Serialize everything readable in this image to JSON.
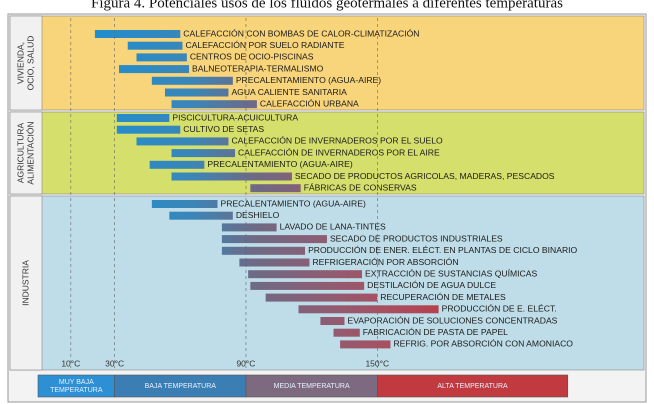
{
  "chart_data": {
    "type": "range_bar",
    "title": "Figura 4. Potenciales usos de los fluidos geotermales a diferentes temperaturas",
    "xlim": [
      -5,
      270
    ],
    "xticks": [
      {
        "value": 10,
        "label": "10°C"
      },
      {
        "value": 30,
        "label": "30°C"
      },
      {
        "value": 90,
        "label": "90°C"
      },
      {
        "value": 150,
        "label": "150°C"
      }
    ],
    "bands": [
      {
        "lines": [
          "MUY BAJA",
          "TEMPERATURA"
        ],
        "range": [
          -5,
          30
        ]
      },
      {
        "lines": [
          "BAJA TEMPERATURA"
        ],
        "range": [
          30,
          90
        ]
      },
      {
        "lines": [
          "MEDIA TEMPERATURA"
        ],
        "range": [
          90,
          150
        ]
      },
      {
        "lines": [
          "ALTA TEMPERATURA"
        ],
        "range": [
          150,
          237
        ]
      }
    ],
    "groups": [
      {
        "name": [
          "VIVIENDA,",
          "OCIO, SALUD"
        ],
        "items": [
          {
            "label": "CALEFACCIÓN CON BOMBAS DE CALOR-CLIMATIZACIÓN",
            "range": [
              21,
              60
            ]
          },
          {
            "label": "CALEFACCIÓN POR SUELO RADIANTE",
            "range": [
              36,
              61
            ]
          },
          {
            "label": "CENTROS DE OCIO-PISCINAS",
            "range": [
              40,
              63
            ]
          },
          {
            "label": "BALNEOTERAPIA-TERMALISMO",
            "range": [
              32,
              64
            ]
          },
          {
            "label": "PRECALENTAMIENTO (AGUA-AIRE)",
            "range": [
              47,
              84
            ]
          },
          {
            "label": "AGUA CALIENTE SANITARIA",
            "range": [
              53,
              82
            ]
          },
          {
            "label": "CALEFACCIÓN URBANA",
            "range": [
              56,
              95
            ]
          }
        ]
      },
      {
        "name": [
          "AGRICULTURA",
          "ALIMENTACIÓN"
        ],
        "items": [
          {
            "label": "PISCICULTURA-ACUICULTURA",
            "range": [
              31,
              55
            ]
          },
          {
            "label": "CULTIVO DE SETAS",
            "range": [
              31,
              60
            ]
          },
          {
            "label": "CALEFACCIÓN DE INVERNADEROS POR EL SUELO",
            "range": [
              40,
              82
            ]
          },
          {
            "label": "CALEFACCIÓN DE INVERNADEROS POR EL AIRE",
            "range": [
              56,
              85
            ]
          },
          {
            "label": "PRECALENTAMIENTO (AGUA-AIRE)",
            "range": [
              46,
              71
            ]
          },
          {
            "label": "SECADO DE PRODUCTOS AGRICOLAS, MADERAS, PESCADOS",
            "range": [
              56,
              111
            ]
          },
          {
            "label": "FÁBRICAS DE CONSERVAS",
            "range": [
              92,
              115
            ]
          }
        ]
      },
      {
        "name": [
          "INDUSTRIA"
        ],
        "items": [
          {
            "label": "PRECALENTAMIENTO (AGUA-AIRE)",
            "range": [
              47,
              77
            ]
          },
          {
            "label": "DESHIELO",
            "range": [
              55,
              84
            ]
          },
          {
            "label": "LAVADO DE LANA-TINTES",
            "range": [
              79,
              104
            ]
          },
          {
            "label": "SECADO DE PRODUCTOS INDUSTRIALES",
            "range": [
              79,
              127
            ]
          },
          {
            "label": "PRODUCCIÓN DE ENER. ELÉCT. EN PLANTAS DE CICLO BINARIO",
            "range": [
              79,
              117
            ]
          },
          {
            "label": "REFRIGERACIÓN POR ABSORCIÓN",
            "range": [
              87,
              119
            ]
          },
          {
            "label": "EXTRACCIÓN DE SUSTANCIAS QUÍMICAS",
            "range": [
              91,
              143
            ]
          },
          {
            "label": "DESTILACIÓN DE AGUA DULCE",
            "range": [
              92,
              144
            ]
          },
          {
            "label": "RECUPERACIÓN DE METALES",
            "range": [
              99,
              150
            ]
          },
          {
            "label": "PRODUCCIÓN DE E. ELÉCT.",
            "range": [
              114,
              178
            ]
          },
          {
            "label": "EVAPORACIÓN DE SOLUCIONES CONCENTRADAS",
            "range": [
              124,
              135
            ]
          },
          {
            "label": "FABRICACIÓN DE PASTA DE PAPEL",
            "range": [
              130,
              142
            ]
          },
          {
            "label": "REFRIG. POR ABSORCIÓN CON AMONIACO",
            "range": [
              133,
              156
            ]
          }
        ]
      }
    ]
  }
}
